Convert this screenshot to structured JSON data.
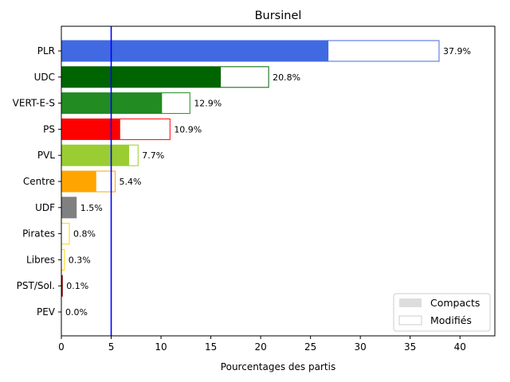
{
  "chart_data": {
    "type": "bar",
    "orientation": "horizontal",
    "title": "Bursinel",
    "xlabel": "Pourcentages des partis",
    "ylabel": "",
    "xlim": [
      0,
      43.5
    ],
    "xticks": [
      0,
      5,
      10,
      15,
      20,
      25,
      30,
      35,
      40
    ],
    "reference_line": {
      "x": 5,
      "color": "#0000ff"
    },
    "categories": [
      "PLR",
      "UDC",
      "VERT-E-S",
      "PS",
      "PVL",
      "Centre",
      "UDF",
      "Pirates",
      "Libres",
      "PST/Sol.",
      "PEV"
    ],
    "series": [
      {
        "name": "Compacts",
        "values": [
          26.8,
          16.0,
          10.1,
          5.9,
          6.8,
          3.5,
          1.5,
          0.0,
          0.0,
          0.1,
          0.0
        ]
      },
      {
        "name": "Modifiés",
        "values": [
          37.9,
          20.8,
          12.9,
          10.9,
          7.7,
          5.4,
          1.5,
          0.8,
          0.3,
          0.1,
          0.0
        ]
      }
    ],
    "data_labels": [
      "37.9%",
      "20.8%",
      "12.9%",
      "10.9%",
      "7.7%",
      "5.4%",
      "1.5%",
      "0.8%",
      "0.3%",
      "0.1%",
      "0.0%"
    ],
    "colors": [
      "#4169e1",
      "#006400",
      "#228b22",
      "#ff0000",
      "#9acd32",
      "#ffa500",
      "#808080",
      "#ffd700",
      "#ffd700",
      "#8b0000",
      "#ffd700"
    ],
    "legend": {
      "placement": "bottom-right",
      "entries": [
        "Compacts",
        "Modifiés"
      ],
      "swatch_colors": [
        "#dddddd",
        "#ffffff"
      ]
    },
    "grid": false
  }
}
